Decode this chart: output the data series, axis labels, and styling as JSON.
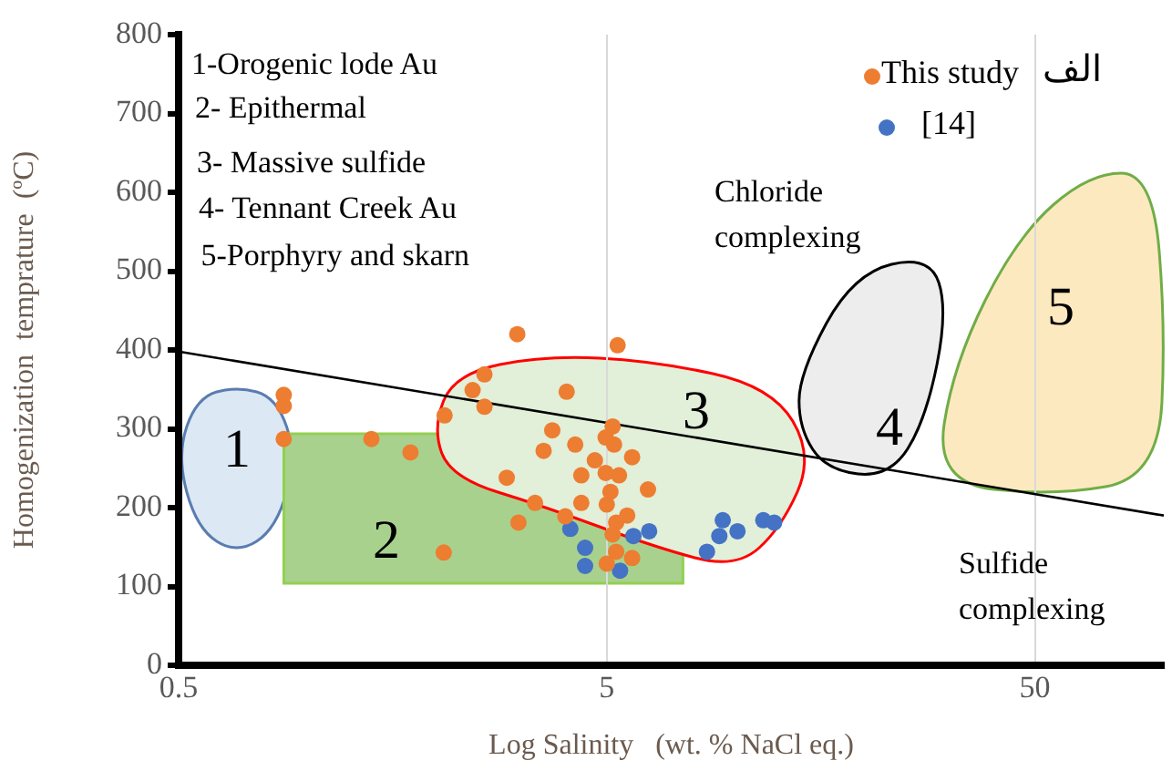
{
  "chart_data": {
    "type": "scatter",
    "xlabel": "Log Salinity   (wt. % NaCl eq.)",
    "ylabel": "Homogenization  temprature  (ºC)",
    "log": "x",
    "xlim": [
      0.5,
      100
    ],
    "xticks": [
      0.5,
      5,
      50
    ],
    "ylim": [
      0,
      800
    ],
    "yticks": [
      0,
      100,
      200,
      300,
      400,
      500,
      600,
      700,
      800
    ],
    "grid": "x",
    "legend": "top right",
    "marker": "circle",
    "series": [
      {
        "name": "This study",
        "color": "#ed7d31",
        "x": [
          0.88,
          0.88,
          0.88,
          1.41,
          1.74,
          2.08,
          3.09,
          5.3,
          2.59,
          2.43,
          2.59,
          2.09,
          4.03,
          3.73,
          3.56,
          4.22,
          5.16,
          4.97,
          5.2,
          4.69,
          5.73,
          4.36,
          4.97,
          5.34,
          2.92,
          6.24,
          5.1,
          3.4,
          4.36,
          5.0,
          3.11,
          4.0,
          5.58,
          5.26,
          5.16,
          5.26,
          5.0,
          5.73
        ],
        "values": [
          343,
          329,
          287,
          287,
          270,
          143,
          420,
          406,
          369,
          349,
          328,
          317,
          347,
          298,
          272,
          280,
          303,
          289,
          280,
          260,
          264,
          241,
          244,
          241,
          238,
          223,
          220,
          206,
          206,
          204,
          181,
          189,
          190,
          181,
          166,
          144,
          129,
          136
        ]
      },
      {
        "name": "[14]",
        "color": "#4472c4",
        "x": [
          4.11,
          4.45,
          4.45,
          5.37,
          5.77,
          6.28,
          8.57,
          9.16,
          9.33,
          10.1,
          11.6,
          12.3
        ],
        "values": [
          173,
          149,
          126,
          120,
          164,
          170,
          144,
          164,
          184,
          170,
          184,
          181
        ]
      },
      {
        "type": "line",
        "color": "#000000",
        "marker": "none",
        "x": [
          0.5,
          100
        ],
        "values": [
          398,
          190
        ]
      }
    ],
    "annotations": [
      "1-Orogenic lode Au",
      "2- Epithermal",
      "3- Massive sulfide",
      "4- Tennant Creek Au",
      " 5-Porphyry and skarn",
      "Chloride complexing",
      "Sulfide complexing",
      "1",
      "2",
      "3",
      "4",
      "5",
      "الف"
    ]
  }
}
